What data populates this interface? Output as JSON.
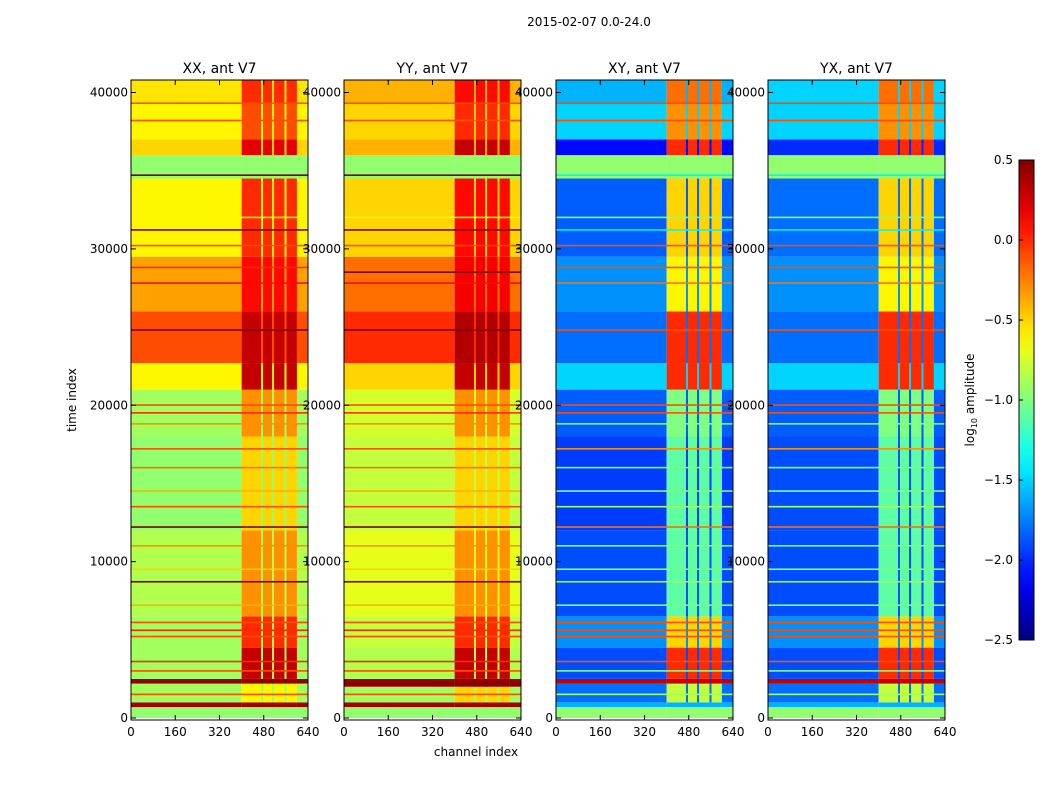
{
  "chart_data": {
    "type": "heatmap",
    "title": "2015-02-07 0.0-24.0",
    "xlabel": "channel index",
    "ylabel": "time index",
    "xlim": [
      0,
      640
    ],
    "ylim": [
      0,
      40800
    ],
    "xticks": [
      "0",
      "160",
      "320",
      "480",
      "640"
    ],
    "yticks": [
      "0",
      "10000",
      "20000",
      "30000",
      "40000"
    ],
    "colorbar": {
      "label": "log10 amplitude",
      "label_main": "log",
      "label_sub": "10",
      "label_rest": " amplitude",
      "range": [
        -2.5,
        0.5
      ],
      "ticks": [
        "0.5",
        "0.0",
        "−0.5",
        "−1.0",
        "−1.5",
        "−2.0",
        "−2.5"
      ],
      "colormap": "jet"
    },
    "rfi_channels": [
      400,
      600
    ],
    "rfi_gaps": [
      470,
      510,
      555
    ],
    "panels": [
      {
        "title": "XX, ant V7",
        "bands": [
          [
            0,
            700,
            -0.95,
            -0.95
          ],
          [
            700,
            1000,
            0.4,
            0.4
          ],
          [
            1000,
            2200,
            -0.9,
            -0.6
          ],
          [
            2200,
            2500,
            0.45,
            0.45
          ],
          [
            2500,
            4500,
            -0.9,
            0.3
          ],
          [
            4500,
            6500,
            -0.9,
            0.0
          ],
          [
            6500,
            12000,
            -0.85,
            -0.3
          ],
          [
            12000,
            18000,
            -0.95,
            -0.5
          ],
          [
            18000,
            21000,
            -0.9,
            -0.3
          ],
          [
            21000,
            22700,
            -0.6,
            0.3
          ],
          [
            22700,
            26000,
            -0.1,
            0.3
          ],
          [
            26000,
            29500,
            -0.35,
            0.1
          ],
          [
            29500,
            34500,
            -0.6,
            0.0
          ],
          [
            34500,
            36000,
            -0.95,
            -0.95
          ],
          [
            36000,
            37000,
            -0.5,
            0.2
          ],
          [
            37000,
            39300,
            -0.6,
            -0.1
          ],
          [
            39300,
            40800,
            -0.55,
            0.0
          ]
        ],
        "stripes": [
          [
            1500,
            -0.1
          ],
          [
            3000,
            -0.1
          ],
          [
            3600,
            0.0
          ],
          [
            5200,
            -0.1
          ],
          [
            5600,
            0.0
          ],
          [
            6100,
            -0.1
          ],
          [
            7200,
            -0.4
          ],
          [
            8700,
            0.5
          ],
          [
            9500,
            -0.5
          ],
          [
            11000,
            -0.3
          ],
          [
            12200,
            0.5
          ],
          [
            13500,
            -0.1
          ],
          [
            14500,
            -0.4
          ],
          [
            16000,
            -0.2
          ],
          [
            17200,
            -0.1
          ],
          [
            18800,
            -0.3
          ],
          [
            19500,
            0.0
          ],
          [
            20000,
            -0.1
          ],
          [
            24800,
            0.5
          ],
          [
            27800,
            0.1
          ],
          [
            28800,
            0.0
          ],
          [
            30200,
            -0.1
          ],
          [
            31200,
            0.5
          ],
          [
            32000,
            -0.6
          ],
          [
            34700,
            0.5
          ],
          [
            35300,
            -0.95
          ],
          [
            38200,
            -0.1
          ],
          [
            39300,
            -0.1
          ]
        ]
      },
      {
        "title": "YY, ant V7",
        "bands": [
          [
            0,
            700,
            -0.95,
            -0.95
          ],
          [
            700,
            1000,
            0.4,
            0.4
          ],
          [
            1000,
            2000,
            -0.9,
            -0.5
          ],
          [
            2000,
            2500,
            0.45,
            0.45
          ],
          [
            2500,
            4500,
            -0.85,
            0.3
          ],
          [
            4500,
            6500,
            -0.8,
            0.0
          ],
          [
            6500,
            12000,
            -0.7,
            -0.3
          ],
          [
            12000,
            18000,
            -0.8,
            -0.5
          ],
          [
            18000,
            21000,
            -0.75,
            -0.3
          ],
          [
            21000,
            22700,
            -0.5,
            0.3
          ],
          [
            22700,
            26000,
            0.0,
            0.35
          ],
          [
            26000,
            29500,
            -0.2,
            0.15
          ],
          [
            29500,
            34500,
            -0.5,
            0.1
          ],
          [
            34500,
            36000,
            -0.95,
            -0.95
          ],
          [
            36000,
            37000,
            -0.4,
            0.3
          ],
          [
            37000,
            39300,
            -0.5,
            0.0
          ],
          [
            39300,
            40800,
            -0.4,
            0.1
          ]
        ],
        "stripes": [
          [
            1500,
            -0.1
          ],
          [
            3000,
            -0.1
          ],
          [
            3600,
            0.0
          ],
          [
            5200,
            -0.1
          ],
          [
            5600,
            0.0
          ],
          [
            6100,
            -0.1
          ],
          [
            7200,
            -0.4
          ],
          [
            8700,
            0.5
          ],
          [
            9500,
            -0.5
          ],
          [
            11000,
            -0.3
          ],
          [
            12200,
            0.5
          ],
          [
            13500,
            -0.1
          ],
          [
            14500,
            -0.4
          ],
          [
            16000,
            -0.2
          ],
          [
            17200,
            -0.1
          ],
          [
            18800,
            -0.3
          ],
          [
            19500,
            0.0
          ],
          [
            20000,
            -0.1
          ],
          [
            24800,
            0.5
          ],
          [
            27800,
            0.1
          ],
          [
            28500,
            0.5
          ],
          [
            30200,
            -0.1
          ],
          [
            31200,
            0.5
          ],
          [
            32000,
            -0.6
          ],
          [
            34700,
            0.5
          ],
          [
            35300,
            -0.95
          ],
          [
            38200,
            -0.1
          ],
          [
            39300,
            -0.1
          ]
        ]
      },
      {
        "title": "XY, ant V7",
        "bands": [
          [
            0,
            700,
            -0.95,
            -0.95
          ],
          [
            700,
            1000,
            -1.6,
            -1.6
          ],
          [
            1000,
            2200,
            -1.8,
            -0.8
          ],
          [
            2200,
            2500,
            0.3,
            0.3
          ],
          [
            2500,
            4500,
            -1.9,
            0.0
          ],
          [
            4500,
            6500,
            -1.7,
            -0.5
          ],
          [
            6500,
            12000,
            -1.9,
            -1.1
          ],
          [
            12000,
            18000,
            -1.95,
            -1.1
          ],
          [
            18000,
            21000,
            -1.85,
            -1.0
          ],
          [
            21000,
            22700,
            -1.5,
            0.0
          ],
          [
            22700,
            26000,
            -1.8,
            0.0
          ],
          [
            26000,
            29500,
            -1.7,
            -0.6
          ],
          [
            29500,
            34500,
            -1.85,
            -0.5
          ],
          [
            34500,
            36000,
            -0.95,
            -0.95
          ],
          [
            36000,
            37000,
            -2.1,
            0.0
          ],
          [
            37000,
            39300,
            -1.5,
            -0.3
          ],
          [
            39300,
            40800,
            -1.6,
            -0.2
          ]
        ],
        "stripes": [
          [
            1500,
            -0.9
          ],
          [
            3000,
            -1.0
          ],
          [
            3600,
            -0.1
          ],
          [
            5200,
            -0.1
          ],
          [
            5600,
            -0.1
          ],
          [
            6100,
            -0.1
          ],
          [
            7200,
            -1.0
          ],
          [
            8700,
            -0.9
          ],
          [
            9500,
            -1.0
          ],
          [
            11000,
            -1.0
          ],
          [
            12200,
            -0.2
          ],
          [
            13500,
            -0.9
          ],
          [
            14500,
            -1.0
          ],
          [
            16000,
            -1.0
          ],
          [
            17200,
            -0.3
          ],
          [
            18800,
            -1.0
          ],
          [
            19500,
            -0.1
          ],
          [
            20000,
            -0.1
          ],
          [
            24800,
            -0.1
          ],
          [
            27800,
            -0.2
          ],
          [
            28800,
            -0.1
          ],
          [
            30200,
            -0.1
          ],
          [
            31200,
            -1.4
          ],
          [
            32000,
            -1.0
          ],
          [
            34700,
            -1.4
          ],
          [
            35300,
            -0.95
          ],
          [
            38200,
            -0.1
          ],
          [
            39300,
            -0.1
          ]
        ]
      },
      {
        "title": "YX, ant V7",
        "bands": [
          [
            0,
            700,
            -0.95,
            -0.95
          ],
          [
            700,
            1000,
            -1.6,
            -1.6
          ],
          [
            1000,
            2200,
            -1.8,
            -0.8
          ],
          [
            2200,
            2500,
            0.3,
            0.3
          ],
          [
            2500,
            4500,
            -1.9,
            0.0
          ],
          [
            4500,
            6500,
            -1.7,
            -0.5
          ],
          [
            6500,
            12000,
            -1.9,
            -1.1
          ],
          [
            12000,
            18000,
            -1.9,
            -1.1
          ],
          [
            18000,
            21000,
            -1.85,
            -1.0
          ],
          [
            21000,
            22700,
            -1.5,
            0.0
          ],
          [
            22700,
            26000,
            -1.8,
            0.0
          ],
          [
            26000,
            29500,
            -1.7,
            -0.6
          ],
          [
            29500,
            34500,
            -1.8,
            -0.5
          ],
          [
            34500,
            36000,
            -0.95,
            -0.95
          ],
          [
            36000,
            37000,
            -2.0,
            0.0
          ],
          [
            37000,
            39300,
            -1.5,
            -0.3
          ],
          [
            39300,
            40800,
            -1.5,
            -0.2
          ]
        ],
        "stripes": [
          [
            1500,
            -0.9
          ],
          [
            3000,
            -1.0
          ],
          [
            3600,
            -0.1
          ],
          [
            5200,
            -0.1
          ],
          [
            5600,
            -0.1
          ],
          [
            6100,
            -0.1
          ],
          [
            7200,
            -1.0
          ],
          [
            8700,
            -0.9
          ],
          [
            9500,
            -1.0
          ],
          [
            11000,
            -1.0
          ],
          [
            12200,
            -0.2
          ],
          [
            13500,
            -0.9
          ],
          [
            14500,
            -1.0
          ],
          [
            16000,
            -1.0
          ],
          [
            17200,
            -0.3
          ],
          [
            18800,
            -1.0
          ],
          [
            19500,
            -0.1
          ],
          [
            20000,
            -0.1
          ],
          [
            24800,
            -0.1
          ],
          [
            27800,
            -0.2
          ],
          [
            28800,
            -0.1
          ],
          [
            30200,
            -0.1
          ],
          [
            31200,
            -1.4
          ],
          [
            32000,
            -1.0
          ],
          [
            34700,
            -1.4
          ],
          [
            35300,
            -0.95
          ],
          [
            38200,
            -0.1
          ],
          [
            39300,
            -0.1
          ]
        ]
      }
    ]
  }
}
